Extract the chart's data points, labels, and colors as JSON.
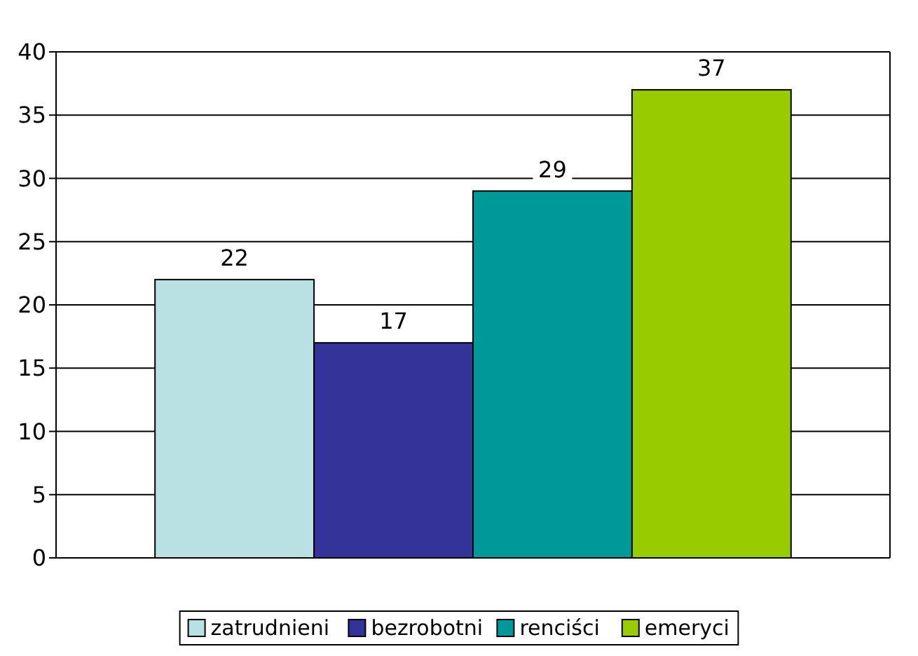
{
  "chart_data": {
    "type": "bar",
    "categories": [
      null
    ],
    "series": [
      {
        "name": "zatrudnieni",
        "color": "#b9e0e3",
        "values": [
          22
        ]
      },
      {
        "name": "bezrobotni",
        "color": "#333399",
        "values": [
          17
        ]
      },
      {
        "name": "renciści",
        "color": "#009999",
        "values": [
          29
        ]
      },
      {
        "name": "emeryci",
        "color": "#99cc00",
        "values": [
          37
        ]
      }
    ],
    "ylim": [
      0,
      40
    ],
    "yticks": [
      0,
      5,
      10,
      15,
      20,
      25,
      30,
      35,
      40
    ],
    "grid": "y",
    "legend": "bottom",
    "data_labels": true
  }
}
